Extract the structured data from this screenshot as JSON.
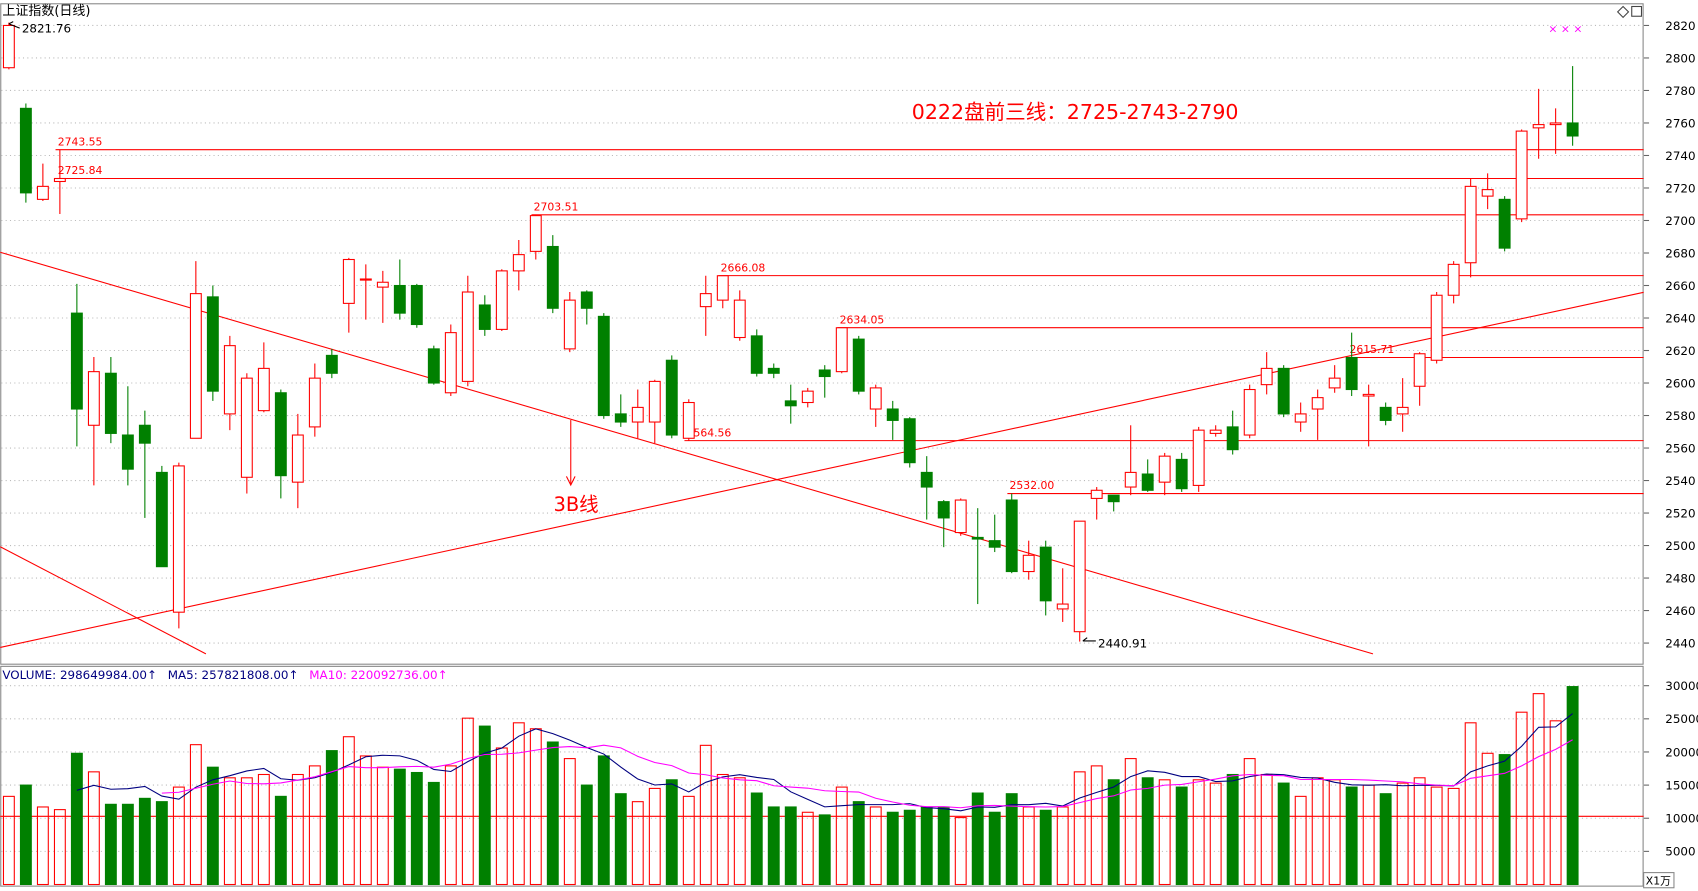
{
  "chart_data": [
    {
      "type": "candlestick",
      "title": "上证指数(日线)",
      "annotations": [
        "0222盘前三线：2725-2743-2790",
        "3B线"
      ],
      "up_color": "#ff0000",
      "down_color": "#008000",
      "ylim": [
        2428,
        2833
      ],
      "yticks": [
        2440,
        2460,
        2480,
        2500,
        2520,
        2540,
        2560,
        2580,
        2600,
        2620,
        2640,
        2660,
        2680,
        2700,
        2720,
        2740,
        2760,
        2780,
        2800,
        2820
      ],
      "grid": true,
      "levels": [
        2743.55,
        2725.84,
        2703.51,
        2666.08,
        2634.05,
        2615.71,
        2564.56,
        {
          "value": 2532,
          "label": "2532.00"
        }
      ],
      "open": [
        2794,
        2769,
        2713,
        2724,
        2643,
        2574,
        2606,
        2568,
        2574,
        2545,
        2459,
        2566,
        2653,
        2581,
        2542,
        2583,
        2594,
        2539,
        2573,
        2617,
        2649,
        2664,
        2659,
        2660,
        2660,
        2621,
        2594,
        2601,
        2648,
        2633,
        2669,
        2681,
        2684,
        2621,
        2656,
        2641,
        2581,
        2576,
        2576,
        2614,
        2566,
        2647,
        2651,
        2628,
        2629,
        2609,
        2589,
        2588,
        2608,
        2607,
        2627,
        2584,
        2584,
        2578,
        2545,
        2527,
        2508,
        2505,
        2503,
        2528,
        2484,
        2499,
        2461,
        2447,
        2529,
        2531,
        2536,
        2544,
        2539,
        2553,
        2537,
        2569,
        2573,
        2568,
        2599,
        2609,
        2576,
        2584,
        2597,
        2615.71,
        2592,
        2585,
        2581,
        2598,
        2614,
        2654,
        2674,
        2715,
        2713,
        2701,
        2757,
        2759,
        2760
      ],
      "high": [
        2821.76,
        2772,
        2735,
        2743.55,
        2661,
        2616,
        2616,
        2598,
        2583,
        2549,
        2551,
        2675,
        2660,
        2629,
        2606,
        2625,
        2596,
        2581,
        2612,
        2621,
        2677,
        2673,
        2669,
        2676,
        2661,
        2623,
        2636,
        2666,
        2654,
        2670,
        2688,
        2703.51,
        2691,
        2656,
        2657,
        2643,
        2593,
        2596,
        2602,
        2617,
        2590,
        2666,
        2666.08,
        2657,
        2633,
        2612,
        2599,
        2597,
        2611,
        2634.05,
        2629,
        2599,
        2589,
        2579,
        2555,
        2528,
        2529,
        2523,
        2519,
        2532,
        2503,
        2503,
        2486,
        2515,
        2536,
        2531,
        2574,
        2553,
        2557,
        2557,
        2573,
        2574,
        2583,
        2599,
        2619,
        2611,
        2588,
        2596,
        2611,
        2631,
        2599,
        2588,
        2603,
        2619,
        2656,
        2675,
        2726,
        2729,
        2715,
        2756,
        2781,
        2769,
        2795
      ],
      "low": [
        2793,
        2711,
        2712,
        2704,
        2561,
        2537,
        2563,
        2537,
        2517,
        2487,
        2449,
        2566,
        2589,
        2571,
        2532,
        2582,
        2529,
        2523,
        2567,
        2603,
        2631,
        2639,
        2637,
        2639,
        2634,
        2599,
        2592,
        2598,
        2629,
        2632,
        2657,
        2676,
        2643,
        2619,
        2636,
        2578,
        2573,
        2566,
        2563,
        2566,
        2564.56,
        2629,
        2646,
        2626,
        2604,
        2603,
        2575,
        2585,
        2591,
        2606,
        2593,
        2573,
        2565,
        2548,
        2516,
        2499,
        2506,
        2464,
        2496,
        2483,
        2479,
        2457,
        2453,
        2440.91,
        2516,
        2521,
        2531,
        2533,
        2531,
        2533,
        2533,
        2567,
        2556,
        2566,
        2593,
        2579,
        2570,
        2565,
        2594,
        2592,
        2561,
        2574,
        2570,
        2586,
        2612,
        2649,
        2665,
        2707,
        2681,
        2699,
        2738,
        2741,
        2746
      ],
      "close": [
        2820,
        2717,
        2721,
        2725.84,
        2584,
        2607,
        2569,
        2547,
        2563,
        2487,
        2549,
        2655,
        2595,
        2623,
        2603,
        2609,
        2543,
        2568,
        2603,
        2606,
        2676,
        2664,
        2662,
        2643,
        2636,
        2600,
        2631,
        2656,
        2633,
        2669,
        2679,
        2703,
        2646,
        2651,
        2646,
        2580,
        2576,
        2585,
        2601,
        2568,
        2588,
        2655,
        2666,
        2651,
        2606,
        2606,
        2586,
        2595,
        2604,
        2634,
        2595,
        2597,
        2577,
        2551,
        2536,
        2517,
        2528,
        2504,
        2499,
        2484,
        2494,
        2466,
        2464,
        2515,
        2534,
        2527,
        2545,
        2534,
        2555,
        2535,
        2571,
        2571,
        2559,
        2596,
        2609,
        2581,
        2581,
        2591,
        2603,
        2596,
        2593,
        2577,
        2585,
        2618,
        2654,
        2673,
        2721,
        2719,
        2683,
        2755,
        2759,
        2760,
        2752
      ]
    },
    {
      "type": "volume",
      "legend": [
        {
          "text": "VOLUME: 298649984.00↑",
          "color": "#000080"
        },
        {
          "text": "MA5: 257821808.00↑",
          "color": "#000080"
        },
        {
          "text": "MA10: 220092736.00↑",
          "color": "#ff00ff"
        }
      ],
      "unit_label": "X1万",
      "ylim": [
        0,
        33000
      ],
      "yticks": [
        5000,
        10000,
        15000,
        20000,
        25000,
        30000
      ],
      "values": [
        13300,
        15000,
        11700,
        11300,
        19800,
        17000,
        12100,
        12100,
        13000,
        12500,
        14700,
        21100,
        17700,
        16100,
        16100,
        16600,
        13300,
        16600,
        17900,
        20200,
        22300,
        19400,
        17700,
        17400,
        16900,
        15400,
        17900,
        25100,
        23900,
        20600,
        24400,
        23500,
        21500,
        19000,
        15000,
        19400,
        13700,
        12500,
        14500,
        15800,
        13300,
        21000,
        16600,
        16100,
        13800,
        11700,
        11700,
        10900,
        10500,
        14700,
        12500,
        11700,
        10900,
        11200,
        11700,
        11700,
        10100,
        13800,
        10900,
        13700,
        11700,
        11200,
        11700,
        17000,
        17900,
        15800,
        19000,
        16100,
        15800,
        14700,
        15800,
        15300,
        16600,
        19000,
        16600,
        15300,
        13300,
        16100,
        15800,
        14700,
        15000,
        13700,
        15300,
        16100,
        14700,
        14500,
        24400,
        19800,
        19600,
        26000,
        28800,
        24700,
        29865
      ]
    }
  ]
}
